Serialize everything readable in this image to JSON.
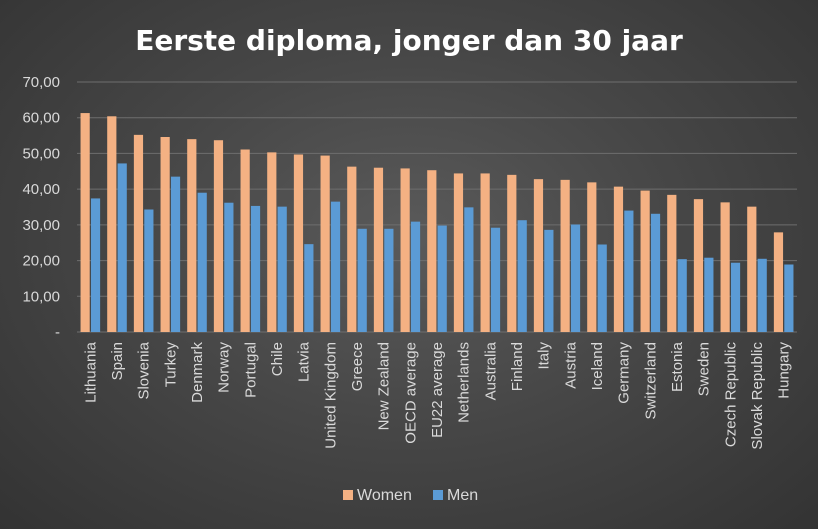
{
  "chart_data": {
    "type": "bar",
    "title": "Eerste diploma, jonger dan 30 jaar",
    "categories": [
      "Lithuania",
      "Spain",
      "Slovenia",
      "Turkey",
      "Denmark",
      "Norway",
      "Portugal",
      "Chile",
      "Latvia",
      "United Kingdom",
      "Greece",
      "New Zealand",
      "OECD average",
      "EU22 average",
      "Netherlands",
      "Australia",
      "Finland",
      "Italy",
      "Austria",
      "Iceland",
      "Germany",
      "Switzerland",
      "Estonia",
      "Sweden",
      "Czech Republic",
      "Slovak Republic",
      "Hungary"
    ],
    "series": [
      {
        "name": "Women",
        "values": [
          61.3,
          60.4,
          55.2,
          54.6,
          54.0,
          53.7,
          51.1,
          50.3,
          49.7,
          49.4,
          46.3,
          46.0,
          45.8,
          45.3,
          44.4,
          44.4,
          44.0,
          42.8,
          42.6,
          41.9,
          40.7,
          39.6,
          38.4,
          37.2,
          36.3,
          35.1,
          27.9
        ]
      },
      {
        "name": "Men",
        "values": [
          37.4,
          47.2,
          34.3,
          43.5,
          39.0,
          36.2,
          35.3,
          35.1,
          24.6,
          36.5,
          28.9,
          28.9,
          30.9,
          29.8,
          34.9,
          29.2,
          31.3,
          28.6,
          30.1,
          24.5,
          34.0,
          33.1,
          20.4,
          20.8,
          19.4,
          20.5,
          18.9
        ]
      }
    ],
    "ylim": [
      0,
      70
    ],
    "y_ticks": [
      "-",
      "10,00",
      "20,00",
      "30,00",
      "40,00",
      "50,00",
      "60,00",
      "70,00"
    ],
    "xlabel": "",
    "ylabel": "",
    "grid": true,
    "legend_position": "bottom",
    "colors": {
      "Women": "#f4b183",
      "Men": "#5b9bd5",
      "grid": "#6e6e6e",
      "text": "#ffffff",
      "tick_text": "#d9d9d9"
    }
  }
}
